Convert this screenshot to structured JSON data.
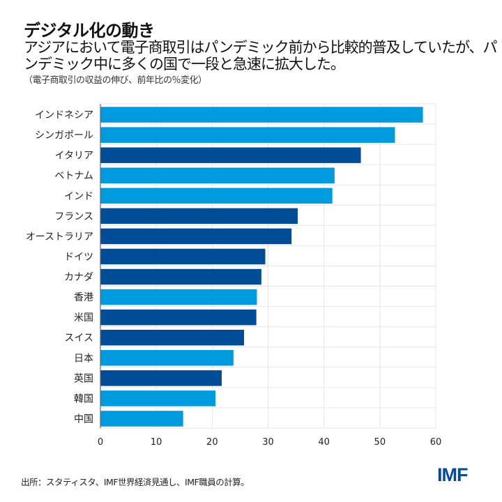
{
  "header": {
    "title": "デジタル化の動き",
    "subtitle": "アジアにおいて電子商取引はパンデミック前から比較的普及していたが、パンデミック中に多くの国で一段と急速に拡大した。",
    "note": "（電子商取引の収益の伸び、前年比の％変化）"
  },
  "footer": {
    "source": "出所：スタティスタ、IMF世界経済見通し、IMF職員の計算。",
    "logo": "IMF"
  },
  "colors": {
    "asia": "#009ade",
    "other": "#004c97"
  },
  "chart_data": {
    "type": "bar",
    "orientation": "horizontal",
    "categories": [
      "インドネシア",
      "シンガポール",
      "イタリア",
      "ベトナム",
      "インド",
      "フランス",
      "オーストラリア",
      "ドイツ",
      "カナダ",
      "香港",
      "米国",
      "スイス",
      "日本",
      "英国",
      "韓国",
      "中国"
    ],
    "values": [
      57.7,
      52.7,
      46.6,
      41.9,
      41.5,
      35.3,
      34.2,
      29.5,
      28.8,
      28.0,
      27.9,
      25.7,
      23.8,
      21.7,
      20.6,
      14.8
    ],
    "highlight": [
      true,
      true,
      false,
      true,
      true,
      false,
      false,
      false,
      false,
      true,
      false,
      false,
      true,
      false,
      true,
      true
    ],
    "xlim": [
      0,
      60
    ],
    "xticks": [
      "0",
      "10",
      "20",
      "30",
      "40",
      "50",
      "60"
    ],
    "grid": true,
    "title": "",
    "xlabel": "",
    "ylabel": ""
  }
}
